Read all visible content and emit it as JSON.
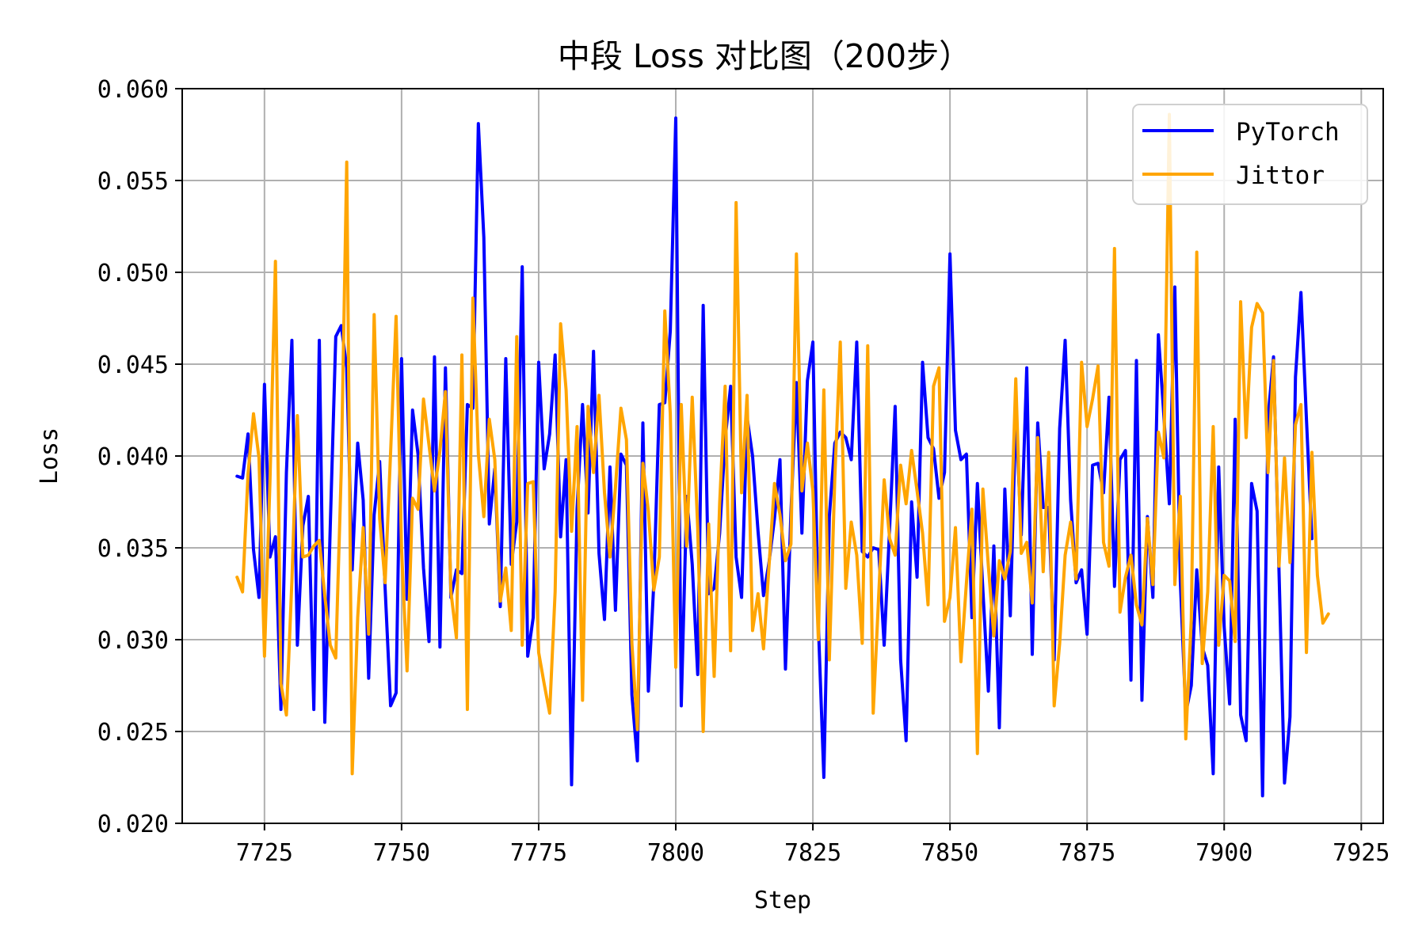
{
  "chart_data": {
    "type": "line",
    "title": "中段 Loss 对比图（200步）",
    "xlabel": "Step",
    "ylabel": "Loss",
    "xlim": [
      7710,
      7929
    ],
    "ylim": [
      0.02,
      0.06
    ],
    "xticks": [
      7725,
      7750,
      7775,
      7800,
      7825,
      7850,
      7875,
      7900,
      7925
    ],
    "yticks": [
      0.02,
      0.025,
      0.03,
      0.035,
      0.04,
      0.045,
      0.05,
      0.055,
      0.06
    ],
    "xtick_labels": [
      "7725",
      "7750",
      "7775",
      "7800",
      "7825",
      "7850",
      "7875",
      "7900",
      "7925"
    ],
    "ytick_labels": [
      "0.020",
      "0.025",
      "0.030",
      "0.035",
      "0.040",
      "0.045",
      "0.050",
      "0.055",
      "0.060"
    ],
    "grid": true,
    "legend_position": "top-right",
    "x_start": 7720,
    "series": [
      {
        "name": "PyTorch",
        "color": "#0000ff",
        "values": [
          0.0389,
          0.0388,
          0.0412,
          0.0349,
          0.0323,
          0.0439,
          0.0345,
          0.0356,
          0.0262,
          0.0391,
          0.0463,
          0.0297,
          0.0362,
          0.0378,
          0.0262,
          0.0463,
          0.0255,
          0.0362,
          0.0465,
          0.0471,
          0.0448,
          0.0338,
          0.0407,
          0.0376,
          0.0279,
          0.0368,
          0.0397,
          0.0328,
          0.0264,
          0.0271,
          0.0453,
          0.0322,
          0.0425,
          0.0401,
          0.0339,
          0.0299,
          0.0454,
          0.0296,
          0.0448,
          0.0323,
          0.0338,
          0.0336,
          0.0428,
          0.0426,
          0.0581,
          0.0519,
          0.0363,
          0.0393,
          0.0318,
          0.0453,
          0.0341,
          0.0364,
          0.0503,
          0.0291,
          0.0312,
          0.0451,
          0.0393,
          0.0412,
          0.0455,
          0.0356,
          0.0398,
          0.0221,
          0.0371,
          0.0428,
          0.0369,
          0.0457,
          0.0347,
          0.0311,
          0.0394,
          0.0316,
          0.0401,
          0.0395,
          0.027,
          0.0234,
          0.0418,
          0.0272,
          0.0331,
          0.0428,
          0.0429,
          0.0468,
          0.0584,
          0.0264,
          0.0378,
          0.0341,
          0.0281,
          0.0482,
          0.0325,
          0.0328,
          0.0358,
          0.0409,
          0.0438,
          0.0345,
          0.0323,
          0.0421,
          0.04,
          0.0359,
          0.0324,
          0.0342,
          0.0366,
          0.0398,
          0.0284,
          0.0369,
          0.044,
          0.0358,
          0.0441,
          0.0462,
          0.0308,
          0.0225,
          0.0367,
          0.0407,
          0.0413,
          0.041,
          0.0398,
          0.0462,
          0.0348,
          0.0345,
          0.035,
          0.0349,
          0.0297,
          0.0361,
          0.0427,
          0.0289,
          0.0245,
          0.0375,
          0.0334,
          0.0451,
          0.041,
          0.0404,
          0.0377,
          0.0391,
          0.051,
          0.0414,
          0.0398,
          0.0401,
          0.0312,
          0.0385,
          0.0327,
          0.0272,
          0.0351,
          0.0252,
          0.0382,
          0.0313,
          0.0424,
          0.0357,
          0.0448,
          0.0292,
          0.0418,
          0.0372,
          0.0372,
          0.0289,
          0.0415,
          0.0463,
          0.0376,
          0.0331,
          0.0338,
          0.0303,
          0.0395,
          0.0396,
          0.038,
          0.0432,
          0.0329,
          0.0398,
          0.0403,
          0.0278,
          0.0452,
          0.0267,
          0.0367,
          0.0323,
          0.0466,
          0.0422,
          0.0374,
          0.0492,
          0.0332,
          0.026,
          0.0275,
          0.0338,
          0.0296,
          0.0286,
          0.0227,
          0.0394,
          0.0307,
          0.0265,
          0.042,
          0.0259,
          0.0245,
          0.0385,
          0.037,
          0.0215,
          0.0421,
          0.0454,
          0.0337,
          0.0222,
          0.0258,
          0.0443,
          0.0489,
          0.042,
          0.0355
        ]
      },
      {
        "name": "Jittor",
        "color": "#ffa500",
        "values": [
          0.0334,
          0.0326,
          0.039,
          0.0423,
          0.0399,
          0.0291,
          0.0386,
          0.0506,
          0.0276,
          0.0259,
          0.0332,
          0.0422,
          0.0345,
          0.0346,
          0.0351,
          0.0354,
          0.0324,
          0.0297,
          0.029,
          0.0392,
          0.056,
          0.0227,
          0.0312,
          0.0361,
          0.0303,
          0.0477,
          0.0366,
          0.0331,
          0.0402,
          0.0476,
          0.0349,
          0.0283,
          0.0377,
          0.0371,
          0.0431,
          0.0406,
          0.0381,
          0.0403,
          0.0435,
          0.0326,
          0.0301,
          0.0455,
          0.0262,
          0.0486,
          0.0401,
          0.0367,
          0.042,
          0.0398,
          0.0321,
          0.0339,
          0.0305,
          0.0465,
          0.0297,
          0.0385,
          0.0386,
          0.0293,
          0.0276,
          0.026,
          0.0326,
          0.0472,
          0.0436,
          0.0359,
          0.0416,
          0.0267,
          0.0427,
          0.0391,
          0.0433,
          0.038,
          0.0345,
          0.0383,
          0.0426,
          0.0409,
          0.0298,
          0.0251,
          0.0396,
          0.037,
          0.0327,
          0.0345,
          0.0479,
          0.0423,
          0.0285,
          0.0428,
          0.0351,
          0.0432,
          0.0361,
          0.025,
          0.0363,
          0.028,
          0.0374,
          0.0438,
          0.0294,
          0.0538,
          0.038,
          0.0433,
          0.0305,
          0.0325,
          0.0295,
          0.034,
          0.0385,
          0.0368,
          0.0343,
          0.0352,
          0.051,
          0.0381,
          0.0407,
          0.0381,
          0.03,
          0.0436,
          0.0289,
          0.0388,
          0.0462,
          0.0328,
          0.0364,
          0.0346,
          0.0298,
          0.046,
          0.026,
          0.0324,
          0.0387,
          0.0355,
          0.0346,
          0.0395,
          0.0374,
          0.0403,
          0.0381,
          0.0358,
          0.0319,
          0.0438,
          0.0448,
          0.031,
          0.0323,
          0.0361,
          0.0288,
          0.0331,
          0.0371,
          0.0238,
          0.0382,
          0.034,
          0.0302,
          0.0343,
          0.0333,
          0.0348,
          0.0442,
          0.0347,
          0.0353,
          0.032,
          0.041,
          0.0337,
          0.0402,
          0.0264,
          0.0298,
          0.0346,
          0.0364,
          0.0333,
          0.0451,
          0.0416,
          0.0431,
          0.0449,
          0.0353,
          0.034,
          0.0513,
          0.0315,
          0.0334,
          0.0346,
          0.0319,
          0.0308,
          0.0366,
          0.033,
          0.0413,
          0.0399,
          0.0586,
          0.033,
          0.0378,
          0.0246,
          0.0311,
          0.0511,
          0.0287,
          0.0326,
          0.0416,
          0.0297,
          0.0335,
          0.0332,
          0.0299,
          0.0484,
          0.041,
          0.047,
          0.0483,
          0.0478,
          0.0391,
          0.0452,
          0.034,
          0.0399,
          0.0342,
          0.0417,
          0.0428,
          0.0293,
          0.0402,
          0.0335,
          0.0309,
          0.0314
        ]
      }
    ]
  }
}
